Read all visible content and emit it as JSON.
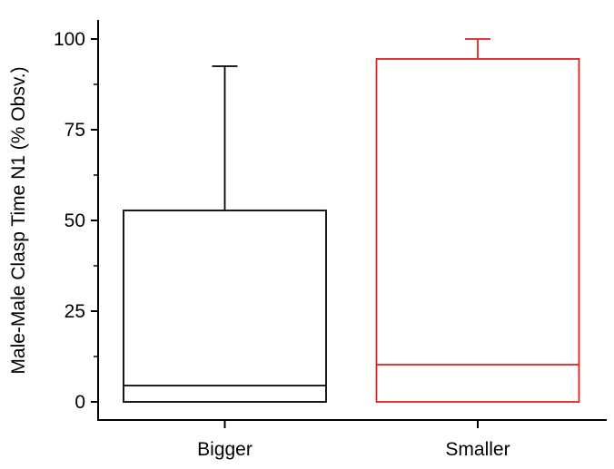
{
  "chart_data": {
    "type": "box",
    "title": "",
    "xlabel": "",
    "ylabel": "Male-Male Clasp Time N1 (% Obsv.)",
    "ylim": [
      -5,
      105
    ],
    "yticks": [
      0,
      25,
      50,
      75,
      100
    ],
    "yminor_step": 12.5,
    "grid": false,
    "categories": [
      "Bigger",
      "Smaller"
    ],
    "boxes": [
      {
        "category": "Bigger",
        "min": 0,
        "q1": 0,
        "median": 4.5,
        "q3": 52.75,
        "whisker_high": 92.5,
        "color": "#000000"
      },
      {
        "category": "Smaller",
        "min": 0,
        "q1": 0,
        "median": 10.25,
        "q3": 94.5,
        "whisker_high": 100,
        "color": "#e02020"
      }
    ]
  }
}
